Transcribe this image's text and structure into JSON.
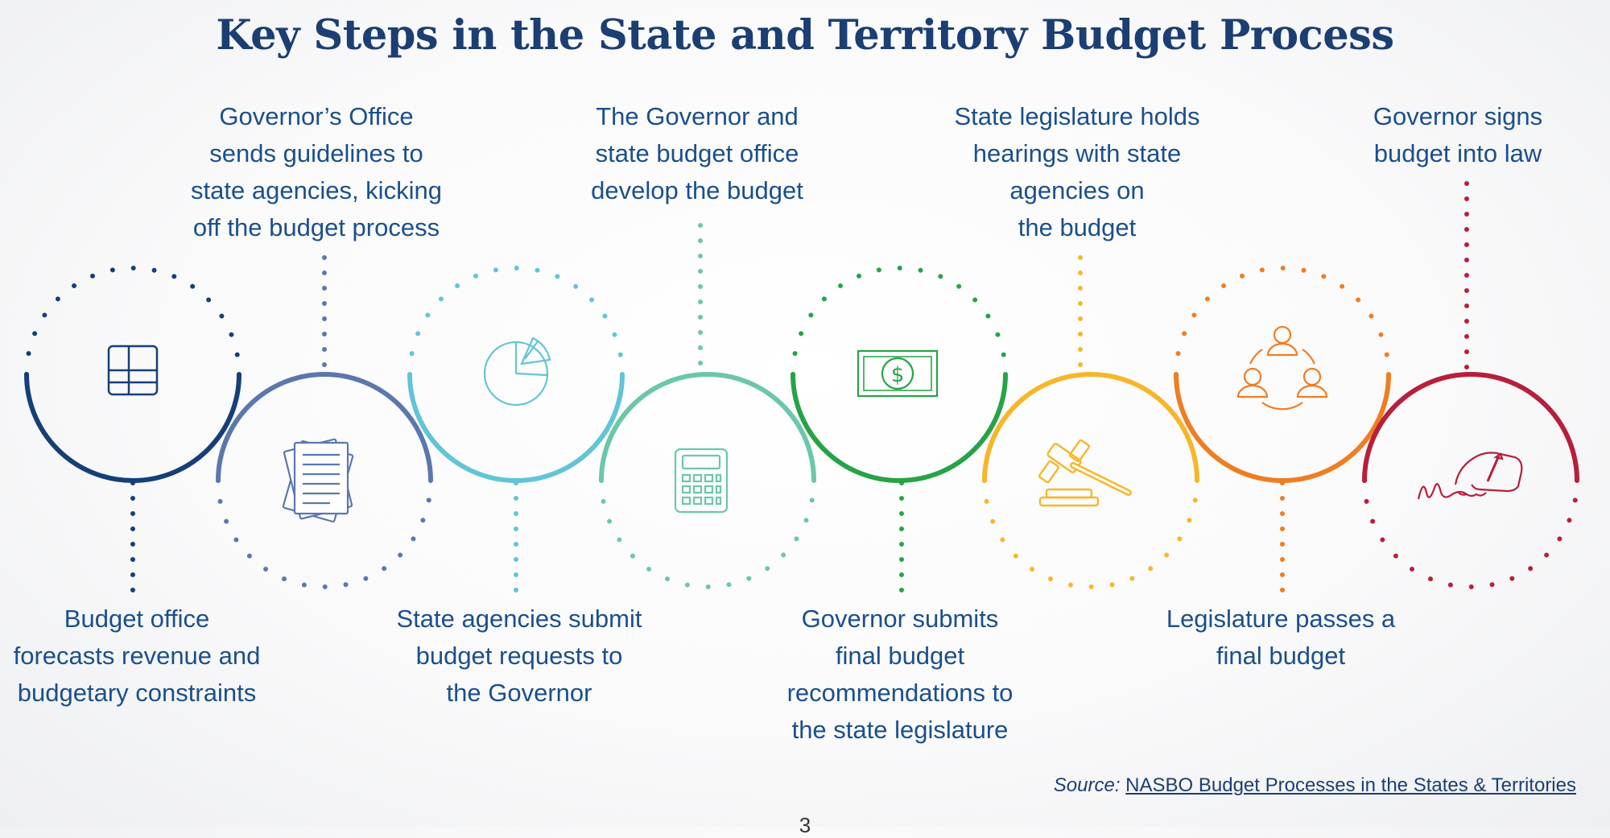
{
  "title": "Key Steps in the State and Territory Budget Process",
  "steps": [
    {
      "label": "Budget office\nforecasts revenue and\nbudgetary constraints",
      "color": "#163f78",
      "icon": "grid-icon"
    },
    {
      "label": "Governor’s Office\nsends guidelines to\nstate agencies, kicking\noff the budget process",
      "color": "#5b78ad",
      "icon": "documents-icon"
    },
    {
      "label": "State agencies submit\nbudget requests to\nthe Governor",
      "color": "#62c4d6",
      "icon": "pie-chart-icon"
    },
    {
      "label": "The Governor and\nstate budget office\ndevelop the budget",
      "color": "#6cc7a8",
      "icon": "calculator-icon"
    },
    {
      "label": "Governor submits\nfinal budget\nrecommendations to\nthe state legislature",
      "color": "#27a347",
      "icon": "dollar-bill-icon"
    },
    {
      "label": "State legislature holds\nhearings with state\nagencies on\nthe budget",
      "color": "#f7b62a",
      "icon": "gavel-icon"
    },
    {
      "label": "Legislature passes a\nfinal budget",
      "color": "#ef7d22",
      "icon": "people-cycle-icon"
    },
    {
      "label": "Governor signs\nbudget into law",
      "color": "#b71f3b",
      "icon": "signing-hand-icon"
    }
  ],
  "source": {
    "label": "Source:",
    "link_text": "NASBO Budget Processes in the States & Territories"
  },
  "page_number": "3"
}
